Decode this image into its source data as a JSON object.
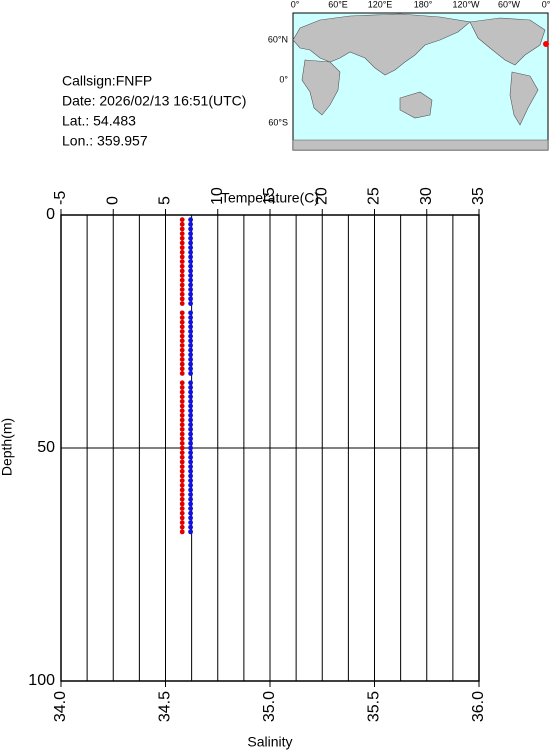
{
  "info": {
    "callsign": "Callsign:FNFP",
    "date": "Date:  2026/02/13 16:51(UTC)",
    "lat": "Lat.:  54.483",
    "lon": "Lon.:  359.957"
  },
  "map": {
    "lon_labels": [
      "0°",
      "60°E",
      "120°E",
      "180°",
      "120°W",
      "60°W",
      "0°"
    ],
    "lat_labels": [
      "60°N",
      "0°",
      "60°S"
    ]
  },
  "chart_data": {
    "type": "scatter",
    "xlabel": "Temperature(C)",
    "x2label": "Salinity",
    "ylabel": "Depth(m)",
    "xlim": [
      -5,
      35
    ],
    "xticks": [
      -5,
      0,
      5,
      10,
      15,
      20,
      25,
      30,
      35
    ],
    "xgrid_minor": [
      -2.5,
      2.5,
      7.5,
      12.5,
      17.5,
      22.5,
      27.5,
      32.5
    ],
    "x2lim": [
      34,
      36
    ],
    "x2ticks": [
      {
        "value": 34,
        "label": "34.0"
      },
      34.5,
      {
        "value": 35,
        "label": "35.0"
      },
      35.5,
      {
        "value": 36,
        "label": "36.0"
      }
    ],
    "ylim": [
      0,
      100
    ],
    "yticks": [
      0,
      50,
      100
    ],
    "y_inverted": true,
    "y": [
      1,
      2,
      3,
      4,
      5,
      6,
      7,
      8,
      9,
      10,
      11,
      12,
      13,
      14,
      15,
      16,
      17,
      18,
      19,
      21,
      22,
      23,
      24,
      25,
      26,
      27,
      28,
      29,
      30,
      31,
      32,
      33,
      34,
      36,
      37,
      38,
      39,
      40,
      41,
      42,
      43,
      44,
      45,
      46,
      47,
      48,
      49,
      50,
      51,
      52,
      53,
      54,
      55,
      56,
      57,
      58,
      59,
      60,
      61,
      62,
      63,
      64,
      65,
      66,
      67,
      68
    ],
    "series": [
      {
        "color": "#e00000",
        "axis": "x",
        "values": [
          6.6,
          6.6,
          6.6,
          6.6,
          6.6,
          6.6,
          6.6,
          6.6,
          6.6,
          6.6,
          6.6,
          6.6,
          6.6,
          6.6,
          6.6,
          6.6,
          6.6,
          6.6,
          6.6,
          6.6,
          6.6,
          6.6,
          6.6,
          6.6,
          6.6,
          6.6,
          6.6,
          6.6,
          6.6,
          6.6,
          6.6,
          6.6,
          6.6,
          6.6,
          6.6,
          6.6,
          6.6,
          6.6,
          6.6,
          6.6,
          6.6,
          6.6,
          6.6,
          6.6,
          6.6,
          6.6,
          6.6,
          6.6,
          6.6,
          6.6,
          6.6,
          6.6,
          6.6,
          6.6,
          6.6,
          6.6,
          6.6,
          6.6,
          6.6,
          6.6,
          6.6,
          6.6,
          6.6,
          6.6,
          6.6,
          6.6
        ]
      },
      {
        "color": "#1010e0",
        "axis": "x2",
        "values": [
          34.62,
          34.62,
          34.62,
          34.62,
          34.62,
          34.62,
          34.62,
          34.62,
          34.62,
          34.62,
          34.62,
          34.62,
          34.62,
          34.62,
          34.62,
          34.62,
          34.62,
          34.62,
          34.62,
          34.62,
          34.62,
          34.62,
          34.62,
          34.62,
          34.62,
          34.62,
          34.62,
          34.62,
          34.62,
          34.62,
          34.62,
          34.62,
          34.62,
          34.62,
          34.62,
          34.62,
          34.62,
          34.62,
          34.62,
          34.62,
          34.62,
          34.62,
          34.62,
          34.62,
          34.62,
          34.62,
          34.62,
          34.62,
          34.62,
          34.62,
          34.62,
          34.62,
          34.62,
          34.62,
          34.62,
          34.62,
          34.62,
          34.62,
          34.62,
          34.62,
          34.62,
          34.62,
          34.62,
          34.62,
          34.62,
          34.62
        ]
      }
    ]
  }
}
